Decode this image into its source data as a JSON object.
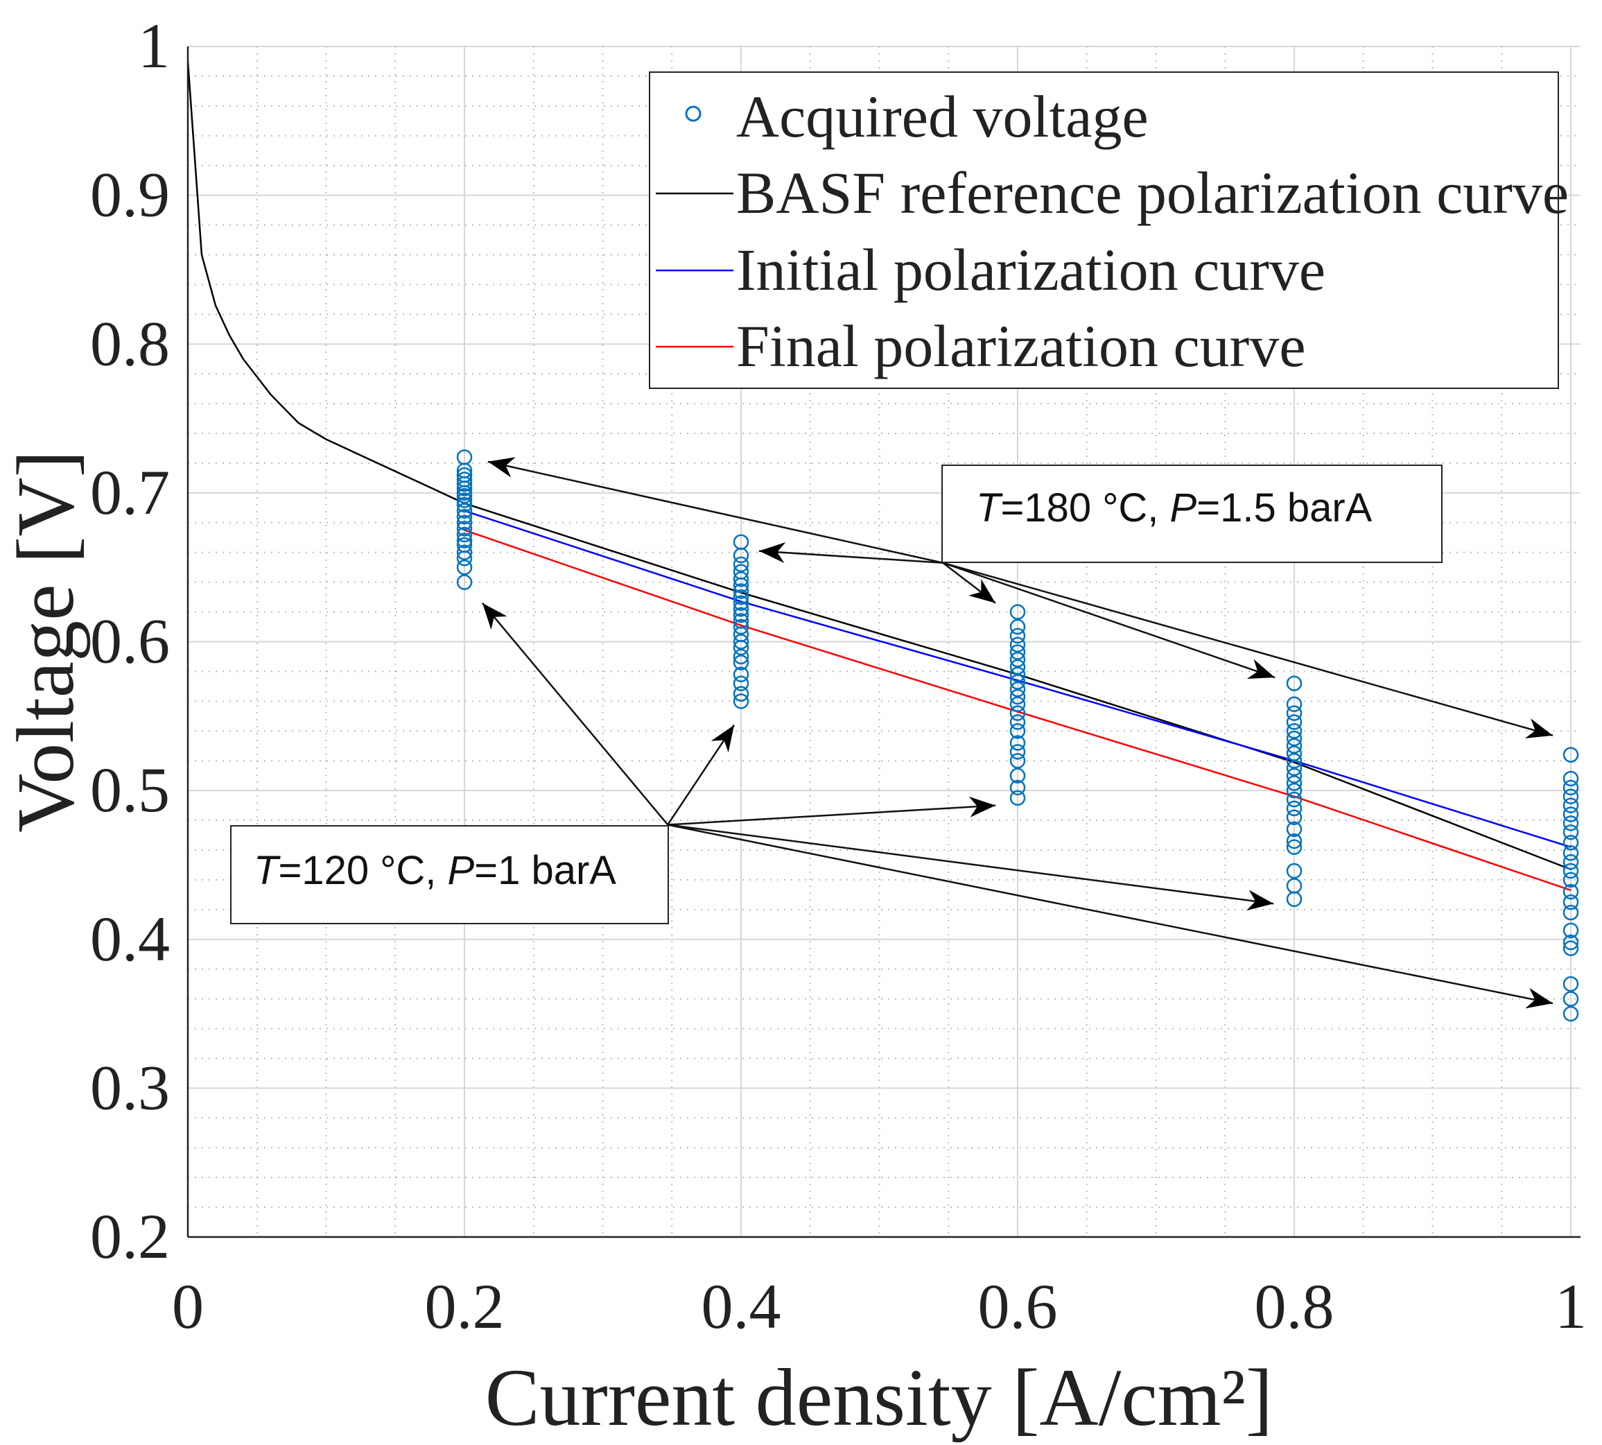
{
  "chart_data": {
    "type": "line",
    "title": "",
    "xlabel": "Current density [A/cm²]",
    "ylabel": "Voltage [V]",
    "xlim": [
      0,
      1.007
    ],
    "ylim": [
      0.2,
      1.0
    ],
    "grid": true,
    "minor_grid": true,
    "xticks": [
      "0",
      "0.2",
      "0.4",
      "0.6",
      "0.8",
      "1"
    ],
    "xtick_values": [
      0,
      0.2,
      0.4,
      0.6,
      0.8,
      1.0
    ],
    "yticks": [
      "0.2",
      "0.3",
      "0.4",
      "0.5",
      "0.6",
      "0.7",
      "0.8",
      "0.9",
      "1"
    ],
    "ytick_values": [
      0.2,
      0.3,
      0.4,
      0.5,
      0.6,
      0.7,
      0.8,
      0.9,
      1.0
    ],
    "legend_placement": "top-right",
    "legend": [
      "Acquired voltage",
      "BASF reference polarization curve",
      "Initial polarization curve",
      "Final polarization curve"
    ],
    "colors": {
      "scatter": "#0072BD",
      "basf": "#000000",
      "initial": "#0000FF",
      "final": "#FF0000"
    },
    "series": [
      {
        "name": "Acquired voltage",
        "kind": "scatter",
        "points": [
          {
            "x": 0.2,
            "y": [
              0.64,
              0.65,
              0.656,
              0.66,
              0.665,
              0.668,
              0.672,
              0.676,
              0.68,
              0.684,
              0.688,
              0.692,
              0.695,
              0.698,
              0.7,
              0.703,
              0.706,
              0.709,
              0.712,
              0.715,
              0.724
            ]
          },
          {
            "x": 0.4,
            "y": [
              0.56,
              0.565,
              0.572,
              0.578,
              0.586,
              0.59,
              0.596,
              0.6,
              0.605,
              0.61,
              0.614,
              0.618,
              0.622,
              0.626,
              0.63,
              0.634,
              0.638,
              0.642,
              0.647,
              0.652,
              0.658,
              0.667
            ]
          },
          {
            "x": 0.6,
            "y": [
              0.495,
              0.502,
              0.51,
              0.52,
              0.526,
              0.532,
              0.54,
              0.546,
              0.552,
              0.558,
              0.563,
              0.568,
              0.573,
              0.578,
              0.583,
              0.588,
              0.593,
              0.598,
              0.604,
              0.61,
              0.62
            ]
          },
          {
            "x": 0.8,
            "y": [
              0.427,
              0.436,
              0.446,
              0.462,
              0.466,
              0.474,
              0.482,
              0.488,
              0.494,
              0.5,
              0.505,
              0.51,
              0.515,
              0.52,
              0.525,
              0.53,
              0.535,
              0.54,
              0.546,
              0.552,
              0.558,
              0.572
            ]
          },
          {
            "x": 1.0,
            "y": [
              0.35,
              0.36,
              0.37,
              0.394,
              0.398,
              0.406,
              0.418,
              0.425,
              0.432,
              0.44,
              0.446,
              0.452,
              0.458,
              0.465,
              0.472,
              0.478,
              0.484,
              0.49,
              0.496,
              0.502,
              0.508,
              0.524
            ]
          }
        ]
      },
      {
        "name": "BASF reference polarization curve",
        "kind": "line",
        "x": [
          0,
          0.01,
          0.02,
          0.03,
          0.04,
          0.06,
          0.08,
          0.1,
          0.2,
          0.4,
          0.6,
          0.8,
          1.0
        ],
        "y": [
          0.99,
          0.86,
          0.826,
          0.806,
          0.79,
          0.766,
          0.747,
          0.736,
          0.693,
          0.633,
          0.578,
          0.519,
          0.447
        ]
      },
      {
        "name": "Initial polarization curve",
        "kind": "line",
        "x": [
          0.2,
          0.4,
          0.6,
          0.8,
          1.0
        ],
        "y": [
          0.688,
          0.627,
          0.574,
          0.52,
          0.462
        ]
      },
      {
        "name": "Final polarization curve",
        "kind": "line",
        "x": [
          0.2,
          0.4,
          0.6,
          0.8,
          1.0
        ],
        "y": [
          0.675,
          0.611,
          0.553,
          0.496,
          0.433
        ]
      }
    ],
    "annotations": [
      {
        "text_parts": [
          "T",
          "=180 °C, ",
          "P",
          "=1.5 barA"
        ],
        "arrow_origin": [
          0.546,
          0.653
        ],
        "arrow_targets": [
          [
            0.217,
            0.721
          ],
          [
            0.413,
            0.661
          ],
          [
            0.584,
            0.626
          ],
          [
            0.786,
            0.576
          ],
          [
            0.987,
            0.537
          ]
        ]
      },
      {
        "text_parts": [
          "T",
          "=120 °C, ",
          "P",
          "=1 barA"
        ],
        "arrow_origin": [
          0.347,
          0.477
        ],
        "arrow_targets": [
          [
            0.213,
            0.626
          ],
          [
            0.395,
            0.544
          ],
          [
            0.584,
            0.49
          ],
          [
            0.785,
            0.424
          ],
          [
            0.987,
            0.357
          ]
        ]
      }
    ]
  }
}
